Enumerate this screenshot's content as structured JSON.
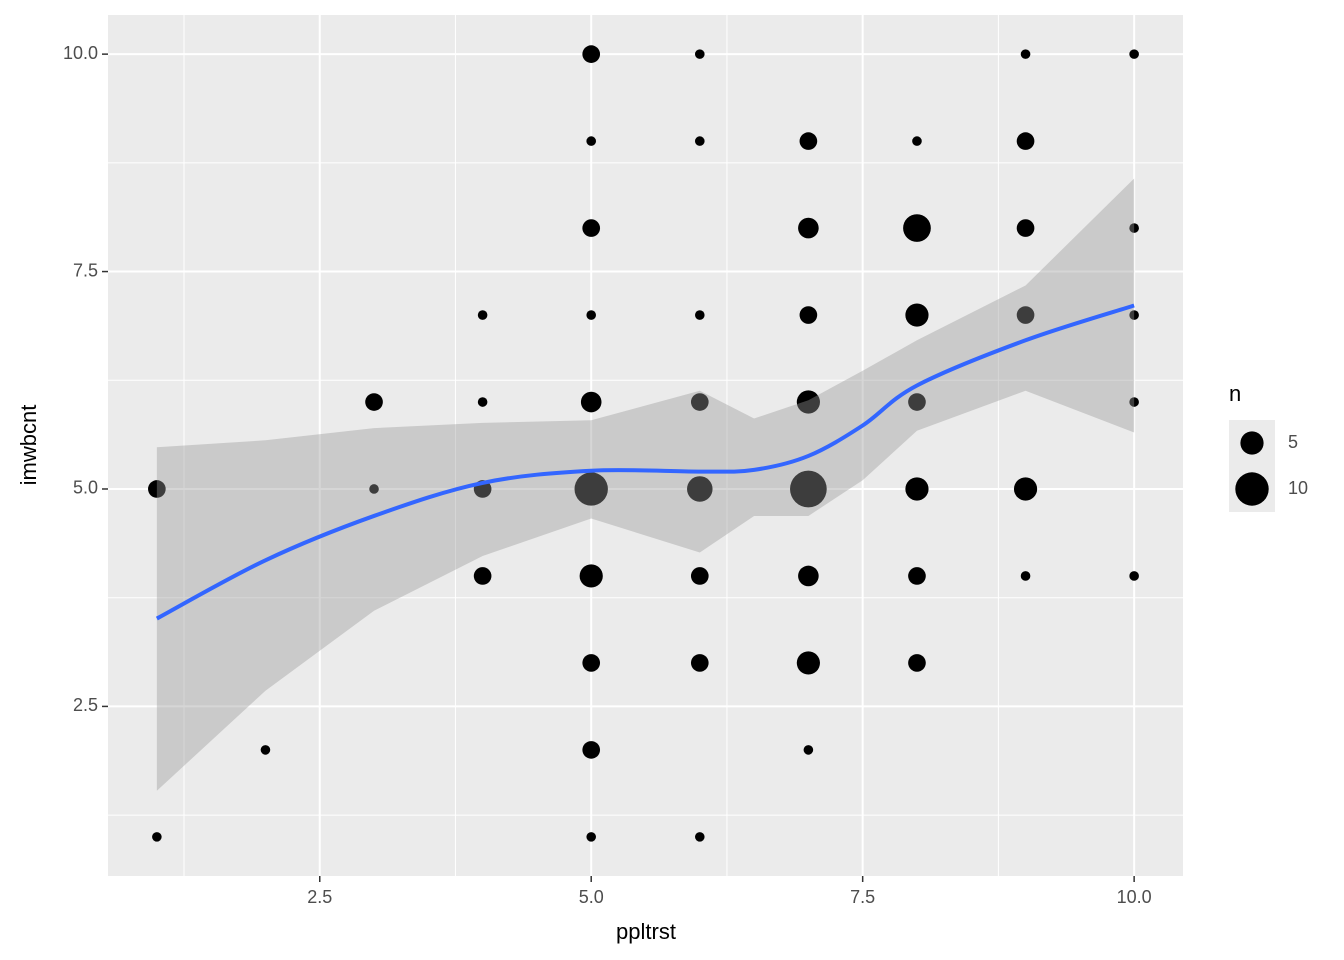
{
  "chart_data": {
    "type": "scatter",
    "x_label": "ppltrst",
    "y_label": "imwbcnt",
    "xlim": [
      0.55,
      10.45
    ],
    "ylim": [
      0.55,
      10.45
    ],
    "xticks": [
      2.5,
      {
        "value": 5,
        "label": "5.0"
      },
      7.5,
      {
        "value": 10,
        "label": "10.0"
      }
    ],
    "yticks": [
      2.5,
      {
        "value": 5,
        "label": "5.0"
      },
      7.5,
      {
        "value": 10,
        "label": "10.0"
      }
    ],
    "xminor": [
      1.25,
      3.75,
      6.25,
      8.75
    ],
    "yminor": [
      1.25,
      3.75,
      6.25,
      8.75
    ],
    "grid": true,
    "color": "#000000",
    "x": [
      5,
      6,
      9,
      10,
      5,
      6,
      7,
      8,
      9,
      5,
      7,
      8,
      9,
      10,
      4,
      5,
      6,
      7,
      8,
      9,
      10,
      3,
      4,
      5,
      6,
      7,
      8,
      10,
      1,
      3,
      4,
      5,
      6,
      7,
      8,
      9,
      4,
      5,
      6,
      7,
      8,
      9,
      10,
      5,
      6,
      7,
      8,
      2,
      5,
      7,
      1,
      5,
      6
    ],
    "values": [
      10,
      10,
      10,
      10,
      9,
      9,
      9,
      9,
      9,
      8,
      8,
      8,
      8,
      8,
      7,
      7,
      7,
      7,
      7,
      7,
      7,
      6,
      6,
      6,
      6,
      6,
      6,
      6,
      5,
      5,
      5,
      5,
      5,
      5,
      5,
      5,
      4,
      4,
      4,
      4,
      4,
      4,
      4,
      3,
      3,
      3,
      3,
      2,
      2,
      2,
      1,
      1,
      1
    ],
    "sizes": [
      3,
      1,
      1,
      1,
      1,
      1,
      3,
      1,
      3,
      3,
      4,
      7,
      3,
      1,
      1,
      1,
      1,
      3,
      5,
      3,
      1,
      3,
      1,
      4,
      3,
      5,
      3,
      1,
      3,
      1,
      3,
      10,
      6,
      12,
      5,
      5,
      3,
      5,
      3,
      4,
      3,
      1,
      1,
      3,
      3,
      5,
      3,
      1,
      3,
      1,
      1,
      1,
      1
    ],
    "size_legend": {
      "title": "n",
      "breaks": [
        5,
        10
      ]
    },
    "smooth": {
      "color": "#3366FF",
      "band_color": "#999999",
      "x": [
        1,
        2,
        3,
        4,
        5,
        6,
        6.5,
        7,
        7.5,
        8,
        9,
        10
      ],
      "values": [
        3.51,
        4.18,
        4.69,
        5.07,
        5.21,
        5.2,
        5.22,
        5.38,
        5.73,
        6.19,
        6.71,
        7.11
      ],
      "lower": [
        1.53,
        2.68,
        3.6,
        4.23,
        4.66,
        4.27,
        4.69,
        4.69,
        5.1,
        5.67,
        6.13,
        5.65
      ],
      "upper": [
        5.48,
        5.56,
        5.7,
        5.76,
        5.79,
        6.13,
        5.81,
        6.02,
        6.36,
        6.71,
        7.34,
        8.57
      ]
    }
  }
}
